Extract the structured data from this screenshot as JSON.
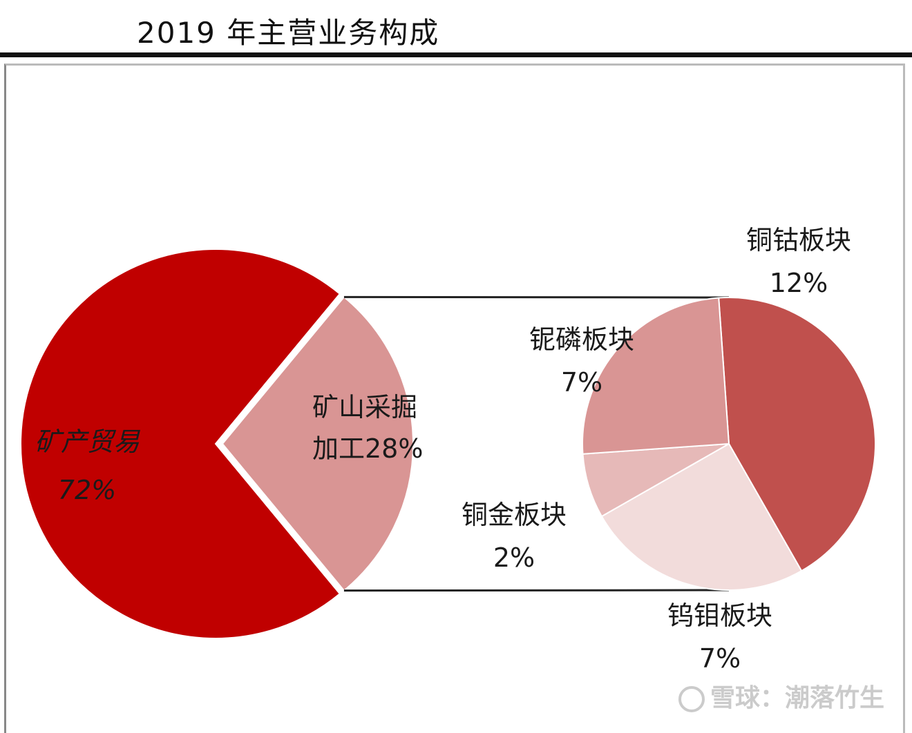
{
  "title": "2019 年主营业务构成",
  "watermark": "雪球：潮落竹生",
  "chart_data": {
    "type": "pie",
    "title": "2019 年主营业务构成",
    "main_pie": {
      "slices": [
        {
          "name": "矿产贸易",
          "value": 72,
          "label": "72%",
          "color": "#c00000"
        },
        {
          "name": "矿山采掘加工",
          "value": 28,
          "label": "28%",
          "color": "#d99594"
        }
      ]
    },
    "sub_pie": {
      "parent": "矿山采掘加工",
      "slices": [
        {
          "name": "铜钴板块",
          "value": 12,
          "label": "12%",
          "color": "#c0504d"
        },
        {
          "name": "钨钼板块",
          "value": 7,
          "label": "7%",
          "color": "#f2dcdb"
        },
        {
          "name": "铜金板块",
          "value": 2,
          "label": "2%",
          "color": "#e6b9b8"
        },
        {
          "name": "铌磷板块",
          "value": 7,
          "label": "7%",
          "color": "#d99594"
        }
      ]
    }
  }
}
